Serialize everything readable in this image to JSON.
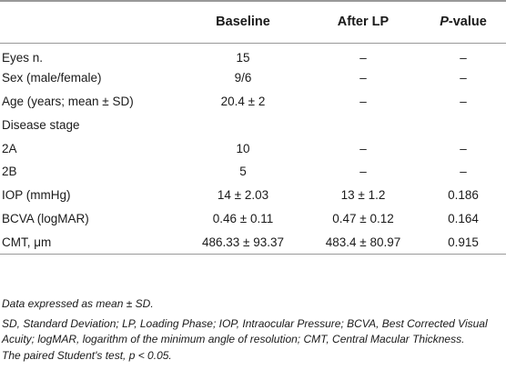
{
  "table": {
    "headers": [
      "",
      "Baseline",
      "After LP",
      "P-value"
    ],
    "rows": [
      [
        "Eyes n.",
        "15",
        "–",
        "–"
      ],
      [
        "Sex (male/female)",
        "9/6",
        "–",
        "–"
      ],
      [
        "Age (years; mean ± SD)",
        "20.4 ± 2",
        "–",
        "–"
      ],
      [
        "Disease stage",
        "",
        "",
        ""
      ],
      [
        "2A",
        "10",
        "–",
        "–"
      ],
      [
        "2B",
        "5",
        "–",
        "–"
      ],
      [
        "IOP (mmHg)",
        "14 ± 2.03",
        "13 ± 1.2",
        "0.186"
      ],
      [
        "BCVA (logMAR)",
        "0.46 ± 0.11",
        "0.47 ± 0.12",
        "0.164"
      ],
      [
        "CMT, μm",
        "486.33 ± 93.37",
        "483.4 ± 80.97",
        "0.915"
      ]
    ]
  },
  "notes": {
    "data_expressed": "Data expressed as mean ± SD.",
    "abbreviations": "SD, Standard Deviation; LP, Loading Phase; IOP, Intraocular Pressure; BCVA, Best Corrected Visual Acuity; logMAR, logarithm of the minimum angle of resolution; CMT, Central Macular Thickness.",
    "test": "The paired Student's test, p < 0.05."
  }
}
